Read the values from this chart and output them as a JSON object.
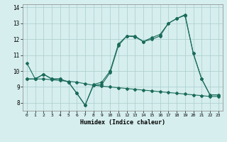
{
  "xlabel": "Humidex (Indice chaleur)",
  "background_color": "#d6eeee",
  "grid_color": "#aacccc",
  "line_color": "#1a6b5a",
  "xlim": [
    -0.5,
    23.5
  ],
  "ylim": [
    7.5,
    14.2
  ],
  "yticks": [
    8,
    9,
    10,
    11,
    12,
    13,
    14
  ],
  "xticks": [
    0,
    1,
    2,
    3,
    4,
    5,
    6,
    7,
    8,
    9,
    10,
    11,
    12,
    13,
    14,
    15,
    16,
    17,
    18,
    19,
    20,
    21,
    22,
    23
  ],
  "line1_x": [
    0,
    1,
    2,
    3,
    4,
    5,
    6,
    7,
    8,
    9,
    10,
    11,
    12,
    13,
    14,
    15,
    16,
    17,
    18,
    19,
    20,
    21,
    22,
    23
  ],
  "line1_y": [
    10.5,
    9.5,
    9.8,
    9.5,
    9.5,
    9.3,
    8.6,
    7.85,
    9.15,
    9.3,
    10.0,
    11.7,
    12.2,
    12.2,
    11.85,
    12.1,
    12.3,
    13.0,
    13.3,
    13.5,
    11.1,
    9.5,
    8.5,
    8.5
  ],
  "line2_x": [
    0,
    1,
    2,
    3,
    4,
    5,
    6,
    7,
    8,
    9,
    10,
    11,
    12,
    13,
    14,
    15,
    16,
    17,
    18,
    19,
    20,
    21,
    22,
    23
  ],
  "line2_y": [
    9.5,
    9.5,
    9.8,
    9.5,
    9.5,
    9.3,
    8.6,
    7.85,
    9.1,
    9.15,
    9.9,
    11.6,
    12.2,
    12.15,
    11.85,
    12.0,
    12.2,
    13.0,
    13.3,
    13.55,
    11.1,
    9.5,
    8.5,
    8.5
  ],
  "line3_x": [
    0,
    1,
    2,
    3,
    4,
    5,
    6,
    7,
    8,
    9,
    10,
    11,
    12,
    13,
    14,
    15,
    16,
    17,
    18,
    19,
    20,
    21,
    22,
    23
  ],
  "line3_y": [
    9.5,
    9.5,
    9.5,
    9.45,
    9.4,
    9.35,
    9.3,
    9.2,
    9.1,
    9.05,
    9.0,
    8.95,
    8.9,
    8.85,
    8.8,
    8.75,
    8.7,
    8.65,
    8.6,
    8.55,
    8.5,
    8.45,
    8.4,
    8.4
  ]
}
